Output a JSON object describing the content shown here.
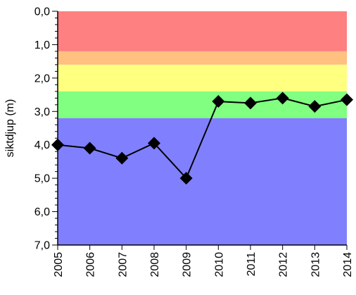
{
  "chart_data": {
    "type": "line",
    "title": "",
    "xlabel": "",
    "ylabel": "siktdjup (m)",
    "x": [
      2005,
      2006,
      2007,
      2008,
      2009,
      2010,
      2011,
      2012,
      2013,
      2014
    ],
    "x_tick_labels": [
      "2005",
      "2006",
      "2007",
      "2008",
      "2009",
      "2010",
      "2011",
      "2012",
      "2013",
      "2014"
    ],
    "xlim": [
      2005,
      2014
    ],
    "ylim": [
      0,
      7
    ],
    "y_inverted": true,
    "y_ticks": [
      0,
      1,
      2,
      3,
      4,
      5,
      6,
      7
    ],
    "y_tick_labels": [
      "0,0",
      "1,0",
      "2,0",
      "3,0",
      "4,0",
      "5,0",
      "6,0",
      "7,0"
    ],
    "series": [
      {
        "name": "",
        "marker": "diamond",
        "color": "#000000",
        "values": [
          4.0,
          4.1,
          4.4,
          3.95,
          5.0,
          2.7,
          2.75,
          2.6,
          2.85,
          2.65
        ]
      }
    ],
    "background_bands": [
      {
        "from": 0.0,
        "to": 1.2,
        "color": "#ff8080"
      },
      {
        "from": 1.2,
        "to": 1.6,
        "color": "#ffc080"
      },
      {
        "from": 1.6,
        "to": 2.4,
        "color": "#ffff80"
      },
      {
        "from": 2.4,
        "to": 3.2,
        "color": "#80ff80"
      },
      {
        "from": 3.2,
        "to": 7.0,
        "color": "#8080ff"
      }
    ],
    "grid": false,
    "legend": "none"
  }
}
